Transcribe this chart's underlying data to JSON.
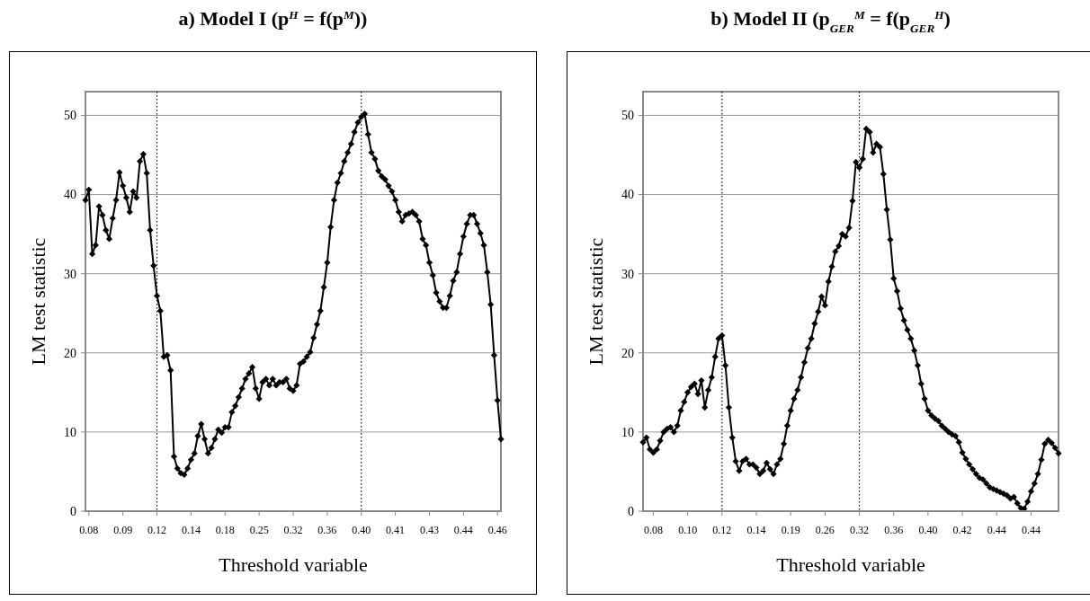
{
  "chart_data": [
    {
      "type": "line",
      "title": "a) Model I (p$^{H}$ = f(p$^{M}$))",
      "xlabel": "Threshold variable",
      "ylabel": "LM test statistic",
      "categories": [
        null,
        "0.08",
        null,
        null,
        null,
        null,
        null,
        null,
        null,
        null,
        null,
        "0.09",
        null,
        null,
        null,
        null,
        null,
        null,
        null,
        null,
        null,
        "0.12",
        null,
        null,
        null,
        null,
        null,
        null,
        null,
        null,
        null,
        "0.14",
        null,
        null,
        null,
        null,
        null,
        null,
        null,
        null,
        null,
        "0.18",
        null,
        null,
        null,
        null,
        null,
        null,
        null,
        null,
        null,
        "0.25",
        null,
        null,
        null,
        null,
        null,
        null,
        null,
        null,
        null,
        "0.32",
        null,
        null,
        null,
        null,
        null,
        null,
        null,
        null,
        null,
        "0.36",
        null,
        null,
        null,
        null,
        null,
        null,
        null,
        null,
        null,
        "0.40",
        null,
        null,
        null,
        null,
        null,
        null,
        null,
        null,
        null,
        "0.41",
        null,
        null,
        null,
        null,
        null,
        null,
        null,
        null,
        null,
        "0.43",
        null,
        null,
        null,
        null,
        null,
        null,
        null,
        null,
        null,
        "0.44",
        null,
        null,
        null,
        null,
        null,
        null,
        null,
        null,
        null,
        "0.46",
        null
      ],
      "series": [
        {
          "color": "#000000",
          "values": [
            39.3,
            40.6,
            32.5,
            33.6,
            38.5,
            37.4,
            35.5,
            34.4,
            37,
            39.3,
            42.8,
            41.1,
            39.6,
            37.8,
            40.4,
            39.6,
            44.2,
            45.1,
            42.7,
            35.5,
            31,
            27.2,
            25.3,
            19.5,
            19.7,
            17.8,
            6.9,
            5.4,
            4.8,
            4.6,
            5.4,
            6.5,
            7.3,
            9.5,
            11,
            9.1,
            7.3,
            8,
            9.1,
            10.3,
            9.9,
            10.6,
            10.6,
            12.5,
            13.3,
            14.4,
            15.5,
            16.7,
            17.4,
            18.2,
            15.5,
            14.2,
            16.3,
            16.7,
            15.9,
            16.7,
            15.9,
            16.3,
            16.3,
            16.7,
            15.5,
            15.2,
            15.9,
            18.6,
            18.9,
            19.5,
            20.1,
            21.9,
            23.6,
            25.3,
            28.3,
            31.4,
            35.9,
            39.3,
            41.5,
            42.7,
            44.2,
            45.3,
            46.4,
            47.9,
            49.1,
            49.8,
            50.2,
            47.6,
            45.3,
            44.5,
            43,
            42.3,
            41.9,
            41.1,
            40.4,
            39.3,
            37.8,
            36.6,
            37.4,
            37.6,
            37.8,
            37.4,
            36.6,
            34.4,
            33.6,
            31.4,
            29.8,
            27.6,
            26.5,
            25.7,
            25.7,
            27.2,
            29.1,
            30.2,
            32.5,
            34.7,
            36.3,
            37.4,
            37.4,
            36.3,
            35.1,
            33.6,
            30.2,
            26.1,
            19.7,
            14,
            9.1
          ]
        }
      ],
      "ylim": [
        0,
        53
      ],
      "yticks": [
        0,
        10,
        20,
        30,
        40,
        50
      ],
      "grid": "y",
      "marker": "diamond",
      "line_style": "solid",
      "ref_lines": [
        {
          "axis": "x",
          "value": "0.12",
          "line_style": "dotted",
          "color": "#000000"
        },
        {
          "axis": "x",
          "value": "0.40",
          "line_style": "dotted",
          "color": "#000000"
        }
      ]
    },
    {
      "type": "line",
      "title": "b) Model II (p$_{GER}$$^{M}$ = f(p$_{GER}$$^{H}$)",
      "xlabel": "Threshold variable",
      "ylabel": "LM test statistic",
      "categories": [
        null,
        null,
        null,
        "0.08",
        null,
        null,
        null,
        null,
        null,
        null,
        null,
        null,
        null,
        "0.10",
        null,
        null,
        null,
        null,
        null,
        null,
        null,
        null,
        null,
        "0.12",
        null,
        null,
        null,
        null,
        null,
        null,
        null,
        null,
        null,
        "0.14",
        null,
        null,
        null,
        null,
        null,
        null,
        null,
        null,
        null,
        "0.19",
        null,
        null,
        null,
        null,
        null,
        null,
        null,
        null,
        null,
        "0.26",
        null,
        null,
        null,
        null,
        null,
        null,
        null,
        null,
        null,
        "0.32",
        null,
        null,
        null,
        null,
        null,
        null,
        null,
        null,
        null,
        "0.36",
        null,
        null,
        null,
        null,
        null,
        null,
        null,
        null,
        null,
        "0.40",
        null,
        null,
        null,
        null,
        null,
        null,
        null,
        null,
        null,
        "0.42",
        null,
        null,
        null,
        null,
        null,
        null,
        null,
        null,
        null,
        "0.44",
        null,
        null,
        null,
        null,
        null,
        null,
        null,
        null,
        null,
        "0.44",
        null,
        null,
        null,
        null,
        null,
        null,
        null,
        null
      ],
      "series": [
        {
          "color": "#000000",
          "values": [
            8.7,
            9.3,
            7.8,
            7.4,
            7.8,
            8.9,
            10,
            10.4,
            10.6,
            10,
            10.8,
            12.7,
            13.8,
            15,
            15.7,
            16.1,
            14.8,
            16.5,
            13.1,
            15.3,
            16.9,
            19.5,
            21.8,
            22.2,
            18.4,
            13.1,
            9.3,
            6.3,
            5.1,
            6.3,
            6.6,
            5.9,
            5.9,
            5.5,
            4.7,
            5.1,
            6.1,
            5.3,
            4.7,
            5.9,
            6.6,
            8.5,
            10.8,
            12.7,
            14.2,
            15.3,
            16.9,
            18.8,
            20.6,
            21.8,
            23.7,
            25.2,
            27.1,
            26,
            29,
            30.9,
            32.8,
            33.5,
            35,
            34.7,
            35.8,
            39.2,
            44.1,
            43.4,
            44.5,
            48.3,
            47.9,
            45.3,
            46.4,
            46,
            42.6,
            38.1,
            34.3,
            29.4,
            27.8,
            25.6,
            24.1,
            22.9,
            21.8,
            20.3,
            18.4,
            16.1,
            14.2,
            12.7,
            12.1,
            11.7,
            11.4,
            10.8,
            10.4,
            10,
            9.7,
            9.5,
            8.7,
            7.4,
            6.6,
            5.9,
            5.3,
            4.7,
            4.2,
            4,
            3.5,
            3,
            2.8,
            2.6,
            2.4,
            2.2,
            2,
            1.6,
            1.8,
            1,
            0.4,
            0.3,
            1.2,
            2.5,
            3.5,
            4.7,
            6.5,
            8.5,
            9,
            8.6,
            8,
            7.3
          ]
        }
      ],
      "ylim": [
        0,
        53
      ],
      "yticks": [
        0,
        10,
        20,
        30,
        40,
        50
      ],
      "grid": "y",
      "marker": "diamond",
      "line_style": "solid",
      "ref_lines": [
        {
          "axis": "x",
          "value": "0.12",
          "line_style": "dotted",
          "color": "#000000"
        },
        {
          "axis": "x",
          "value": "0.32",
          "line_style": "dotted",
          "color": "#000000"
        }
      ]
    }
  ]
}
